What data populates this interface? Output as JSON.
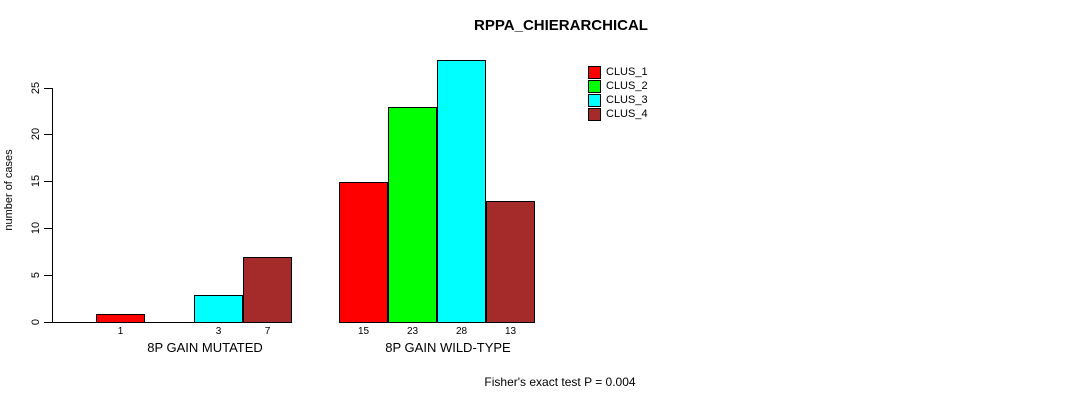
{
  "title": "RPPA_CHIERARCHICAL",
  "footer": "Fisher's exact test P = 0.004",
  "chart_data": {
    "type": "bar",
    "title": "RPPA_CHIERARCHICAL",
    "xlabel": "",
    "ylabel": "number of cases",
    "ylim": [
      0,
      28
    ],
    "yticks": [
      0,
      5,
      10,
      15,
      20,
      25
    ],
    "grid": false,
    "legend_position": "top-right",
    "bar_value_labels": "shown under each nonzero bar",
    "categories": [
      "8P GAIN MUTATED",
      "8P GAIN WILD-TYPE"
    ],
    "series": [
      {
        "name": "CLUS_1",
        "color": "#FF0000",
        "values": [
          1,
          15
        ]
      },
      {
        "name": "CLUS_2",
        "color": "#00FF00",
        "values": [
          0,
          23
        ]
      },
      {
        "name": "CLUS_3",
        "color": "#00FFFF",
        "values": [
          3,
          28
        ]
      },
      {
        "name": "CLUS_4",
        "color": "#A52A2A",
        "values": [
          7,
          13
        ]
      }
    ],
    "annotation": "Fisher's exact test P = 0.004",
    "axis_color": "#000000",
    "background_color": "#FFFFFF"
  }
}
